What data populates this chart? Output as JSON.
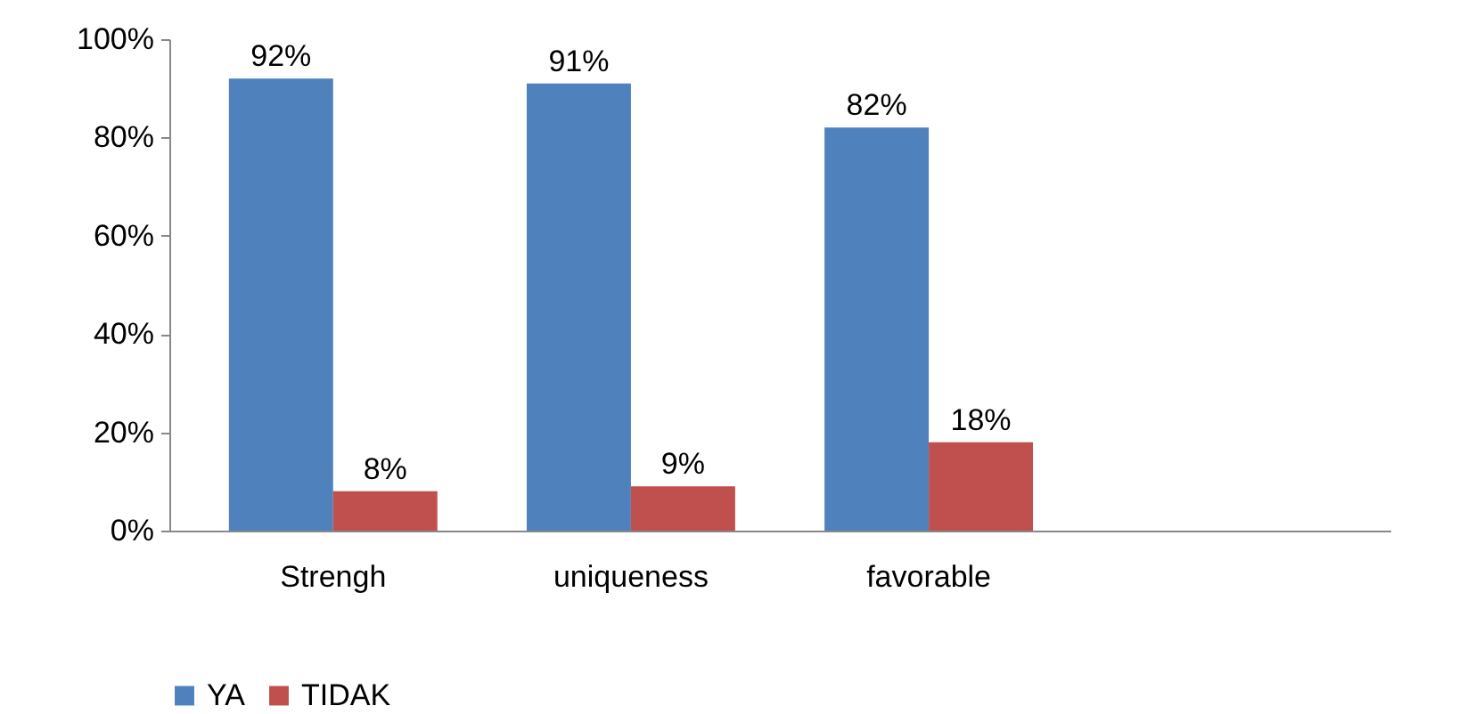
{
  "chart_data": {
    "type": "bar",
    "categories": [
      "Strengh",
      "uniqueness",
      "favorable",
      null
    ],
    "series": [
      {
        "name": "YA",
        "color": "#4f81bd",
        "values": [
          92,
          91,
          82,
          null
        ],
        "value_labels": [
          "92%",
          "91%",
          "82%",
          null
        ]
      },
      {
        "name": "TIDAK",
        "color": "#c0504d",
        "values": [
          8,
          9,
          18,
          null
        ],
        "value_labels": [
          "8%",
          "9%",
          "18%",
          null
        ]
      }
    ],
    "ylim": [
      0,
      100
    ],
    "yticks": [
      {
        "value": 0,
        "label": "0%"
      },
      {
        "value": 20,
        "label": "20%"
      },
      {
        "value": 40,
        "label": "40%"
      },
      {
        "value": 60,
        "label": "60%"
      },
      {
        "value": 80,
        "label": "80%"
      },
      {
        "value": 100,
        "label": "100%"
      }
    ],
    "legend": "bottom",
    "grid": false
  }
}
